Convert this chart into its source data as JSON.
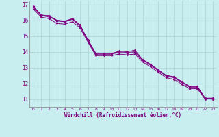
{
  "xlabel": "Windchill (Refroidissement éolien,°C)",
  "background_color": "#c8eef0",
  "line_color": "#800080",
  "grid_color": "#a8d4d8",
  "x_min": -0.5,
  "x_max": 23.5,
  "y_min": 10.5,
  "y_max": 17.2,
  "yticks": [
    11,
    12,
    13,
    14,
    15,
    16,
    17
  ],
  "xticks": [
    0,
    1,
    2,
    3,
    4,
    5,
    6,
    7,
    8,
    9,
    10,
    11,
    12,
    13,
    14,
    15,
    16,
    17,
    18,
    19,
    20,
    21,
    22,
    23
  ],
  "series": [
    [
      16.9,
      16.3,
      16.2,
      16.0,
      15.9,
      16.1,
      15.7,
      14.65,
      13.85,
      13.85,
      13.85,
      14.05,
      14.0,
      14.1,
      13.5,
      13.2,
      12.85,
      12.5,
      12.4,
      12.1,
      11.8,
      11.8,
      11.05,
      11.05
    ],
    [
      16.85,
      16.35,
      16.25,
      16.0,
      15.95,
      16.1,
      15.65,
      14.75,
      13.9,
      13.9,
      13.9,
      14.0,
      13.95,
      14.0,
      13.5,
      13.2,
      12.85,
      12.5,
      12.4,
      12.1,
      11.8,
      11.8,
      11.05,
      11.05
    ],
    [
      16.8,
      16.3,
      16.3,
      15.95,
      15.9,
      16.05,
      15.6,
      14.7,
      13.85,
      13.85,
      13.85,
      13.95,
      13.9,
      13.95,
      13.45,
      13.15,
      12.8,
      12.45,
      12.35,
      12.05,
      11.75,
      11.75,
      11.0,
      11.0
    ],
    [
      16.7,
      16.2,
      16.1,
      15.8,
      15.75,
      15.9,
      15.5,
      14.6,
      13.75,
      13.75,
      13.75,
      13.85,
      13.8,
      13.85,
      13.35,
      13.05,
      12.7,
      12.35,
      12.25,
      11.95,
      11.65,
      11.65,
      11.0,
      11.0
    ]
  ]
}
